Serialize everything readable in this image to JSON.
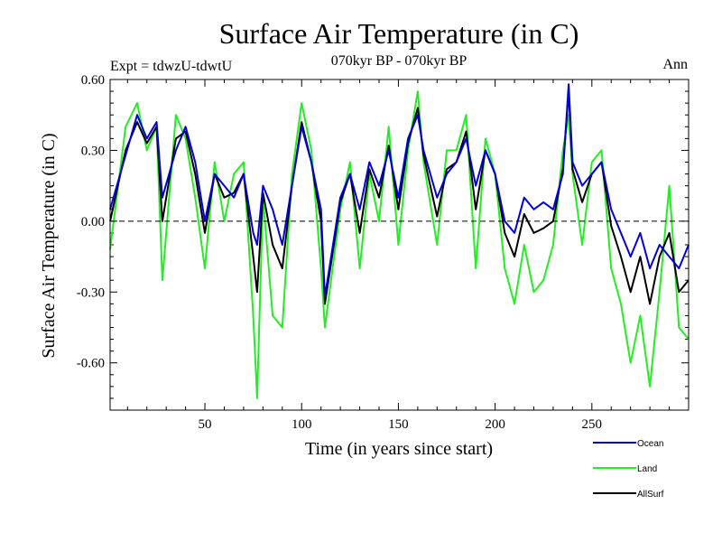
{
  "chart_data": {
    "type": "line",
    "title": "Surface Air Temperature (in C)",
    "subtitle_left": "Expt = tdwzU-tdwtU",
    "subtitle_center": "070kyr BP - 070kyr BP",
    "subtitle_right": "Ann",
    "xlabel": "Time (in years since start)",
    "ylabel": "Surface Air Temperature (in C)",
    "xlim": [
      1,
      300
    ],
    "ylim": [
      -0.8,
      0.6
    ],
    "xticks": [
      50,
      100,
      150,
      200,
      250
    ],
    "xtick_labels": [
      "50",
      "100",
      "150",
      "200",
      "250"
    ],
    "yticks": [
      0.6,
      0.3,
      0.0,
      -0.3,
      -0.6
    ],
    "ytick_labels": [
      "0.60",
      "0.30",
      "0.00",
      "-0.30",
      "-0.60"
    ],
    "zero_line": "dashed",
    "legend_position": "bottom-right, below plot",
    "x": [
      1,
      9,
      15,
      20,
      25,
      28,
      35,
      40,
      45,
      50,
      55,
      60,
      65,
      70,
      75,
      77,
      80,
      85,
      90,
      95,
      100,
      105,
      110,
      112,
      120,
      125,
      130,
      135,
      140,
      145,
      150,
      155,
      160,
      163,
      170,
      175,
      180,
      185,
      190,
      195,
      200,
      205,
      210,
      215,
      220,
      225,
      230,
      235,
      238,
      240,
      245,
      250,
      255,
      260,
      265,
      270,
      275,
      280,
      285,
      290,
      295,
      300
    ],
    "series": [
      {
        "name": "Ocean",
        "color": "#0000dd",
        "values": [
          0.05,
          0.28,
          0.45,
          0.35,
          0.42,
          0.1,
          0.3,
          0.4,
          0.25,
          0.0,
          0.2,
          0.15,
          0.1,
          0.2,
          -0.05,
          -0.1,
          0.15,
          0.05,
          -0.1,
          0.15,
          0.4,
          0.25,
          0.05,
          -0.32,
          0.1,
          0.2,
          0.05,
          0.25,
          0.15,
          0.3,
          0.1,
          0.35,
          0.45,
          0.3,
          0.1,
          0.2,
          0.25,
          0.35,
          0.15,
          0.3,
          0.2,
          0.0,
          -0.05,
          0.1,
          0.05,
          0.08,
          0.05,
          0.2,
          0.58,
          0.25,
          0.15,
          0.2,
          0.25,
          0.05,
          -0.05,
          -0.15,
          -0.05,
          -0.2,
          -0.1,
          -0.15,
          -0.2,
          -0.1
        ]
      },
      {
        "name": "Land",
        "color": "#22ee22",
        "values": [
          -0.12,
          0.4,
          0.5,
          0.3,
          0.4,
          -0.25,
          0.45,
          0.35,
          0.1,
          -0.2,
          0.25,
          0.0,
          0.2,
          0.25,
          -0.4,
          -0.75,
          0.1,
          -0.4,
          -0.45,
          0.2,
          0.5,
          0.3,
          -0.2,
          -0.45,
          0.05,
          0.25,
          -0.2,
          0.2,
          0.0,
          0.4,
          -0.1,
          0.3,
          0.55,
          0.25,
          -0.1,
          0.3,
          0.3,
          0.45,
          -0.2,
          0.35,
          0.2,
          -0.2,
          -0.35,
          -0.1,
          -0.3,
          -0.25,
          -0.1,
          0.3,
          0.45,
          0.2,
          -0.1,
          0.25,
          0.3,
          -0.2,
          -0.35,
          -0.6,
          -0.4,
          -0.7,
          -0.3,
          0.15,
          -0.45,
          -0.5
        ]
      },
      {
        "name": "AllSurf",
        "color": "#000000",
        "values": [
          0.0,
          0.3,
          0.42,
          0.33,
          0.4,
          0.0,
          0.35,
          0.38,
          0.2,
          -0.05,
          0.2,
          0.1,
          0.12,
          0.2,
          -0.15,
          -0.3,
          0.12,
          -0.1,
          -0.2,
          0.15,
          0.42,
          0.25,
          0.0,
          -0.35,
          0.08,
          0.2,
          -0.05,
          0.22,
          0.1,
          0.32,
          0.05,
          0.33,
          0.48,
          0.28,
          0.02,
          0.22,
          0.25,
          0.38,
          0.05,
          0.3,
          0.2,
          -0.05,
          -0.15,
          0.03,
          -0.05,
          -0.03,
          0.0,
          0.22,
          0.55,
          0.22,
          0.08,
          0.2,
          0.25,
          -0.02,
          -0.15,
          -0.3,
          -0.15,
          -0.35,
          -0.15,
          -0.05,
          -0.3,
          -0.25
        ]
      }
    ]
  }
}
